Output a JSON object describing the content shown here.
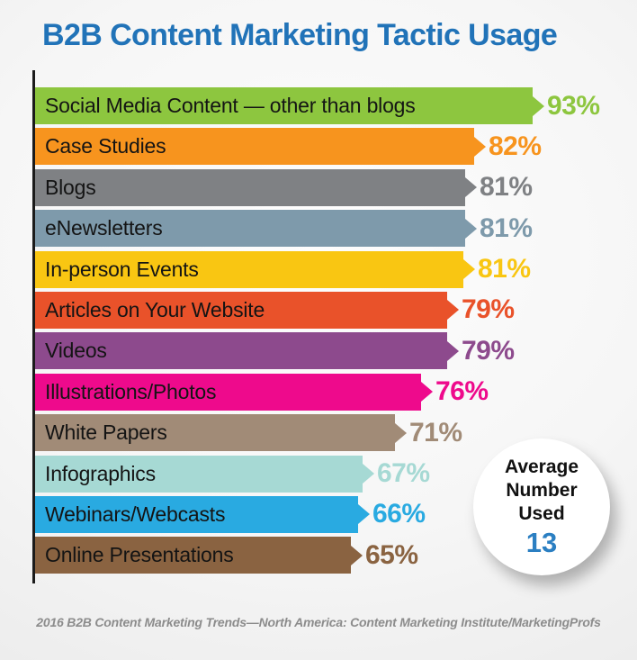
{
  "title": "B2B Content Marketing Tactic Usage",
  "chart_data": {
    "type": "bar",
    "orientation": "horizontal",
    "title": "B2B Content Marketing Tactic Usage",
    "xlabel": "",
    "ylabel": "",
    "value_unit": "%",
    "xlim": [
      0,
      100
    ],
    "grid": false,
    "legend": false,
    "categories": [
      "Social Media Content — other than blogs",
      "Case Studies",
      "Blogs",
      "eNewsletters",
      "In-person Events",
      "Articles on Your Website",
      "Videos",
      "Illustrations/Photos",
      "White Papers",
      "Infographics",
      "Webinars/Webcasts",
      "Online Presentations"
    ],
    "values": [
      93,
      82,
      81,
      81,
      81,
      79,
      79,
      76,
      71,
      67,
      66,
      65
    ],
    "value_labels": [
      "93%",
      "82%",
      "81%",
      "81%",
      "81%",
      "79%",
      "79%",
      "76%",
      "71%",
      "67%",
      "66%",
      "65%"
    ],
    "bar_colors": [
      "#8dc63f",
      "#f7941e",
      "#7f8184",
      "#7e9aab",
      "#f9c612",
      "#e9522a",
      "#8d4a8d",
      "#ee0a8c",
      "#a18b77",
      "#a6d9d4",
      "#29aae1",
      "#8a6341"
    ],
    "annotation_circle": {
      "lines": [
        "Average",
        "Number",
        "Used"
      ],
      "value": "13",
      "value_color": "#2b7fc2"
    },
    "source": "2016 B2B Content Marketing Trends—North America: Content Marketing Institute/MarketingProfs"
  },
  "colors": {
    "title": "#2173b8",
    "axis": "#1b1b1b",
    "label_text": "#141414",
    "source_text": "#8c8c8c"
  }
}
